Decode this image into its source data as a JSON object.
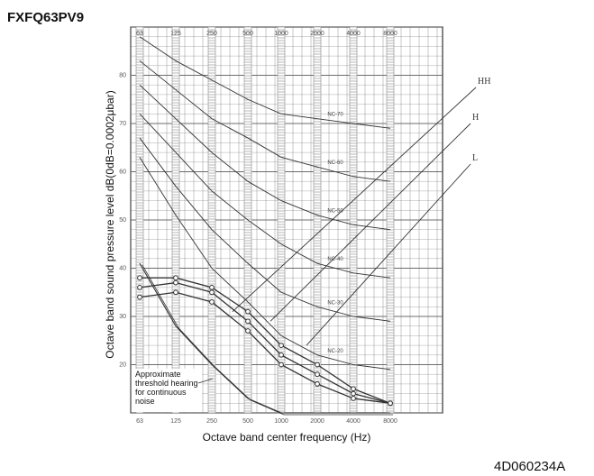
{
  "header": {
    "model": "FXFQ63PV9"
  },
  "footer": {
    "doc_number": "4D060234A"
  },
  "chart_data": {
    "type": "line",
    "title": "FXFQ63PV9",
    "xlabel": "Octave band center frequency (Hz)",
    "ylabel": "Octave band sound pressure level    dB(0dB=0.0002μbar)",
    "x_scale": "log",
    "categories": [
      "63",
      "125",
      "250",
      "500",
      "1000",
      "2000",
      "4000",
      "8000"
    ],
    "top_ticks": [
      "63",
      "125",
      "250",
      "500",
      "1000",
      "2000",
      "4000",
      "8000"
    ],
    "ylim": [
      10,
      90
    ],
    "y_ticks": [
      "20",
      "30",
      "40",
      "50",
      "60",
      "70",
      "80"
    ],
    "grid": true,
    "nc_curve_labels": [
      "NC-70",
      "NC-60",
      "NC-50",
      "NC-40",
      "NC-30",
      "NC-20"
    ],
    "nc_curves": [
      {
        "name": "NC-70",
        "values": [
          88,
          83,
          79,
          75,
          72,
          71,
          70,
          69
        ]
      },
      {
        "name": "NC-60",
        "values": [
          83,
          77,
          71,
          67,
          63,
          61,
          59,
          58
        ]
      },
      {
        "name": "NC-50",
        "values": [
          78,
          71,
          64,
          58,
          54,
          51,
          49,
          48
        ]
      },
      {
        "name": "NC-40",
        "values": [
          72,
          64,
          56,
          50,
          45,
          41,
          39,
          38
        ]
      },
      {
        "name": "NC-30",
        "values": [
          67,
          57,
          48,
          41,
          35,
          32,
          30,
          29
        ]
      },
      {
        "name": "NC-20",
        "values": [
          63,
          51,
          40,
          33,
          26,
          22,
          20,
          19
        ]
      }
    ],
    "measured_curves": [
      {
        "name": "HH",
        "values": [
          38,
          38,
          36,
          31,
          24,
          20,
          15,
          12
        ]
      },
      {
        "name": "H",
        "values": [
          36,
          37,
          35,
          29,
          22,
          18,
          14,
          12
        ]
      },
      {
        "name": "L",
        "values": [
          34,
          35,
          33,
          27,
          20,
          16,
          13,
          12
        ]
      }
    ],
    "speed_labels": [
      "HH",
      "H",
      "L"
    ],
    "threshold_curve_values": [
      41,
      28,
      20,
      13,
      10,
      10,
      10,
      10
    ],
    "annotation": [
      "Approximate",
      "threshold hearing",
      "for continuous",
      "noise"
    ]
  },
  "colors": {
    "line": "#333333",
    "grid": "#666666",
    "hatch": "#888888",
    "background": "#ffffff"
  }
}
